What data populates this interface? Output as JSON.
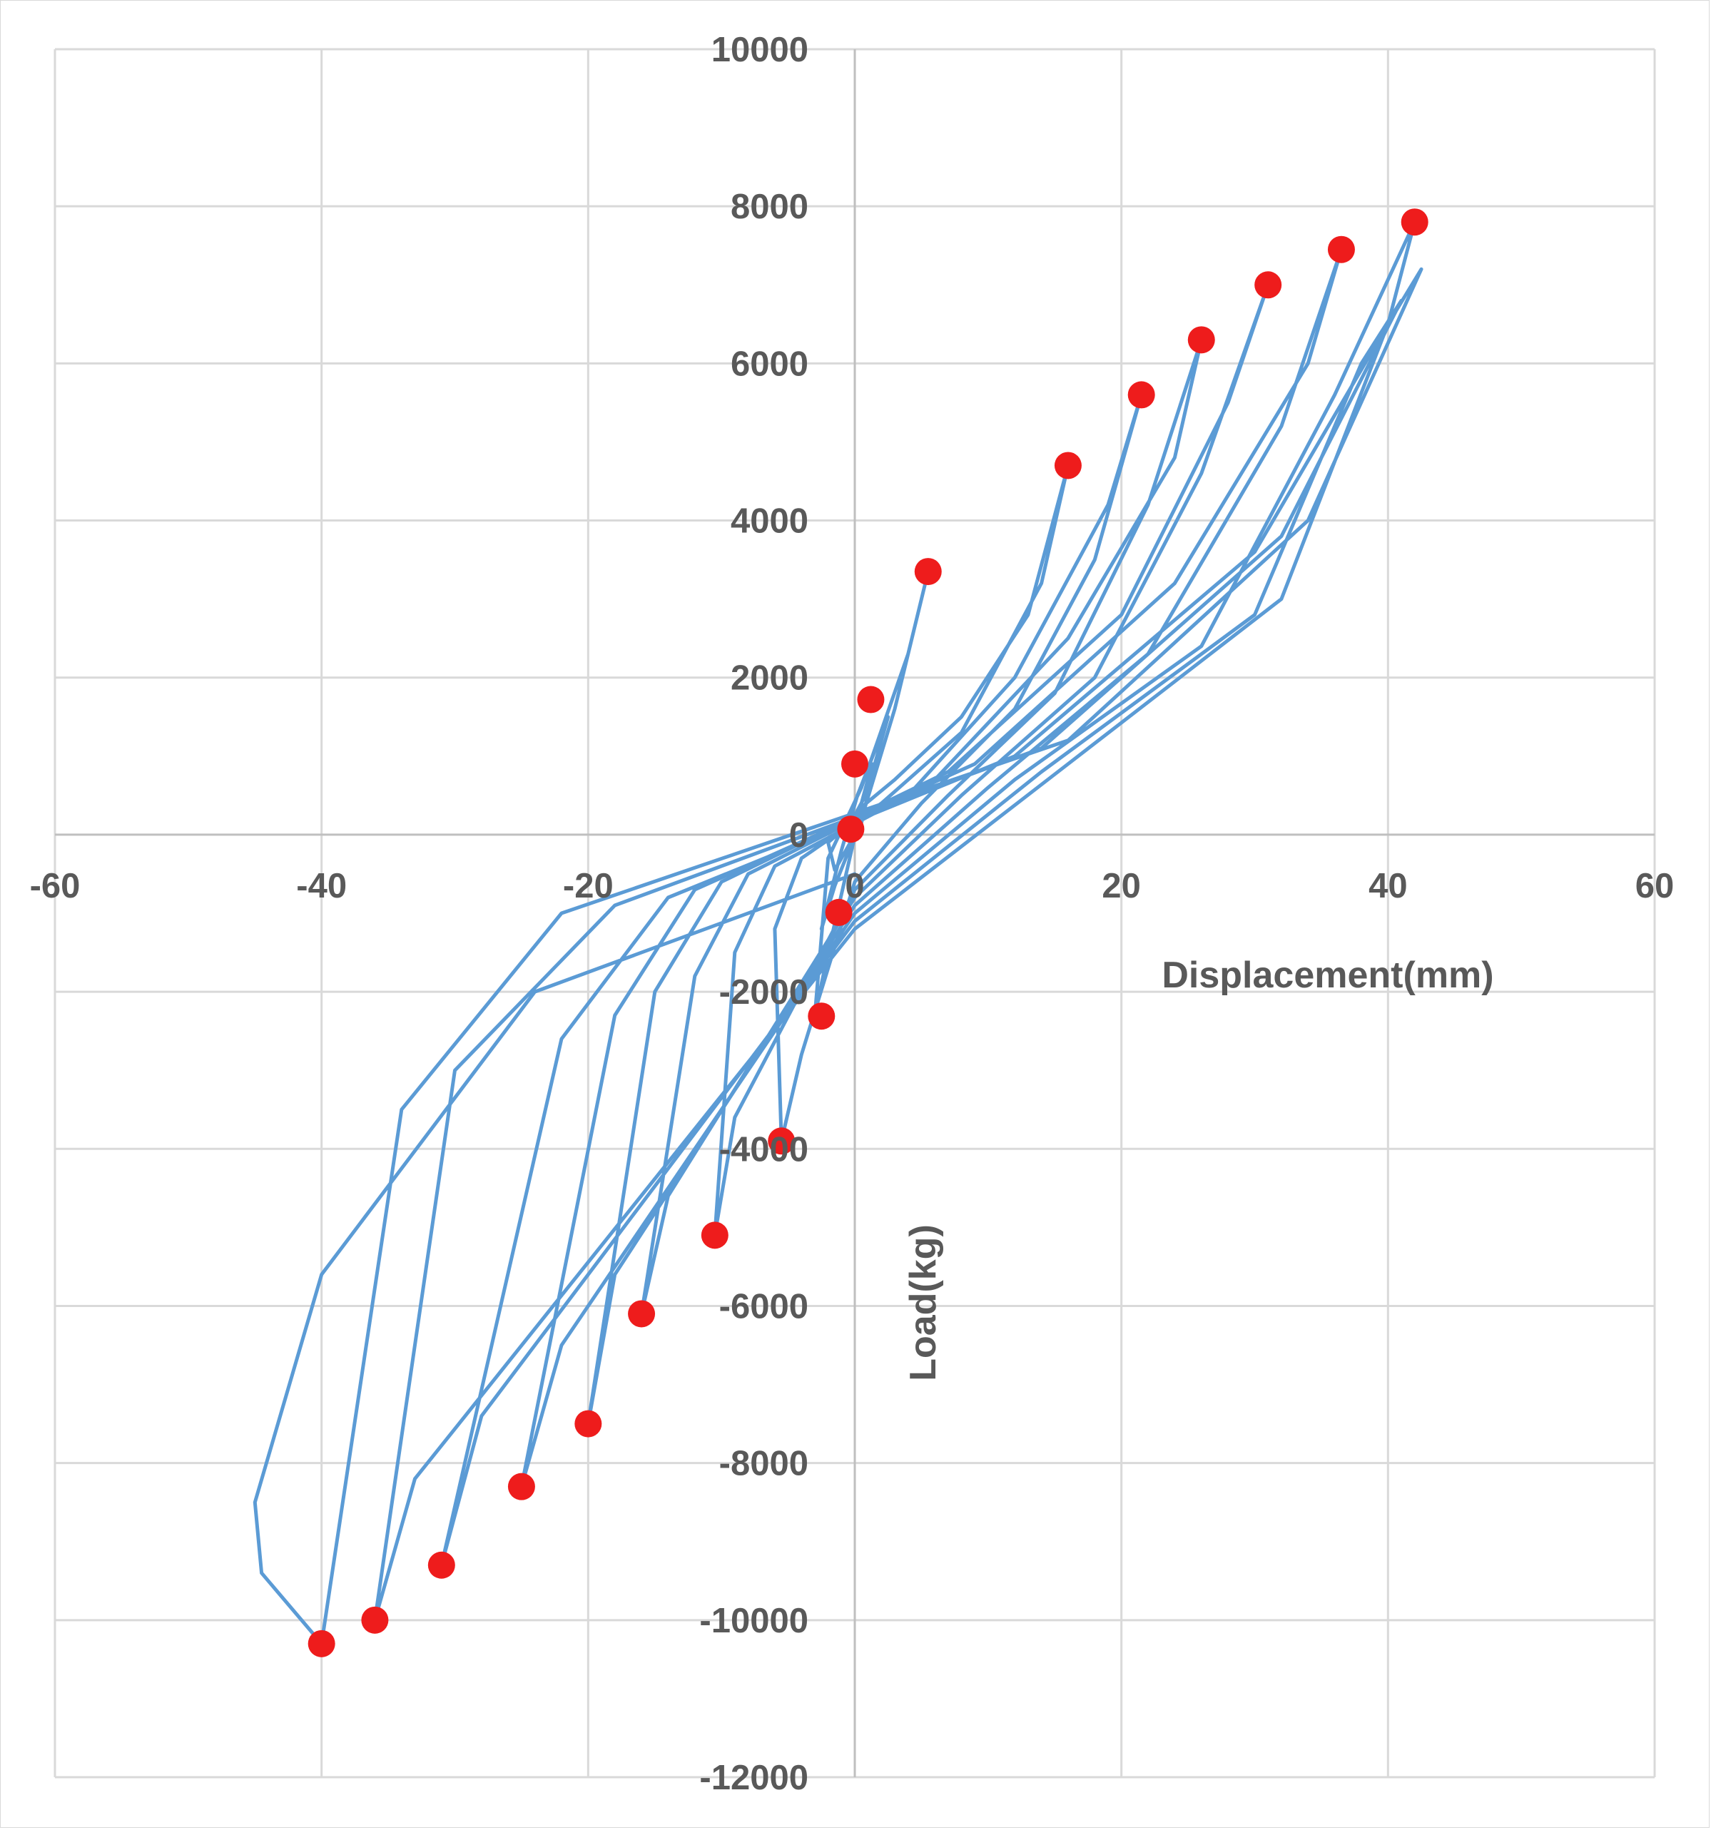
{
  "chart_data": {
    "type": "scatter",
    "xlabel": "Displacement(mm)",
    "ylabel": "Load(kg)",
    "xlim": [
      -60,
      60
    ],
    "ylim": [
      -12000,
      10000
    ],
    "x_ticks": [
      -60,
      -40,
      -20,
      0,
      20,
      40,
      60
    ],
    "y_ticks": [
      10000,
      8000,
      6000,
      4000,
      2000,
      0,
      -2000,
      -4000,
      -6000,
      -8000,
      -10000,
      -12000
    ],
    "grid": true,
    "legend": "none",
    "colors": {
      "hysteresis": "#5b9bd5",
      "peaks": "#ee1c1c",
      "grid": "#d9d9d9",
      "text": "#595959"
    },
    "series": [
      {
        "style": "line",
        "points": [
          [
            0,
            0
          ],
          [
            0.5,
            400
          ],
          [
            1.3,
            900
          ],
          [
            0.8,
            500
          ],
          [
            -0.3,
            150
          ],
          [
            -2,
            -100
          ],
          [
            -1.5,
            -450
          ],
          [
            0.5,
            150
          ],
          [
            1.5,
            900
          ],
          [
            2.5,
            1500
          ],
          [
            0.2,
            500
          ],
          [
            -1,
            -200
          ],
          [
            -2.5,
            -1200
          ],
          [
            -1.5,
            -650
          ],
          [
            0.5,
            200
          ],
          [
            3,
            1600
          ],
          [
            5.5,
            3350
          ],
          [
            4,
            2300
          ],
          [
            0.5,
            600
          ],
          [
            -2,
            -300
          ],
          [
            -3,
            -2300
          ],
          [
            -2,
            -1500
          ],
          [
            0.5,
            350
          ],
          [
            3,
            700
          ],
          [
            8,
            1500
          ],
          [
            13,
            2800
          ],
          [
            16,
            4700
          ],
          [
            14,
            3200
          ],
          [
            8,
            1300
          ],
          [
            2,
            400
          ],
          [
            -4,
            -300
          ],
          [
            -6,
            -1200
          ],
          [
            -5.5,
            -3900
          ],
          [
            -4,
            -2800
          ],
          [
            0,
            -600
          ],
          [
            5,
            400
          ],
          [
            12,
            1600
          ],
          [
            18,
            3500
          ],
          [
            21.5,
            5600
          ],
          [
            19,
            4200
          ],
          [
            12,
            2000
          ],
          [
            4,
            500
          ],
          [
            -6,
            -400
          ],
          [
            -9,
            -1500
          ],
          [
            -10.5,
            -5100
          ],
          [
            -9,
            -3600
          ],
          [
            0,
            -700
          ],
          [
            7,
            500
          ],
          [
            15,
            1800
          ],
          [
            22,
            4200
          ],
          [
            26,
            6300
          ],
          [
            24,
            4800
          ],
          [
            16,
            2500
          ],
          [
            6,
            700
          ],
          [
            -8,
            -500
          ],
          [
            -12,
            -1800
          ],
          [
            -16,
            -6100
          ],
          [
            -14,
            -4600
          ],
          [
            0,
            -800
          ],
          [
            8,
            500
          ],
          [
            18,
            2000
          ],
          [
            26,
            4600
          ],
          [
            31,
            7000
          ],
          [
            28,
            5500
          ],
          [
            20,
            2800
          ],
          [
            7,
            800
          ],
          [
            -10,
            -600
          ],
          [
            -15,
            -2000
          ],
          [
            -20,
            -7500
          ],
          [
            -18,
            -5600
          ],
          [
            0,
            -900
          ],
          [
            10,
            600
          ],
          [
            22,
            2300
          ],
          [
            32,
            5200
          ],
          [
            36.5,
            7450
          ],
          [
            34,
            6000
          ],
          [
            24,
            3200
          ],
          [
            9,
            900
          ],
          [
            -12,
            -700
          ],
          [
            -18,
            -2300
          ],
          [
            -25,
            -8300
          ],
          [
            -22,
            -6500
          ],
          [
            0,
            -1000
          ],
          [
            12,
            700
          ],
          [
            26,
            2400
          ],
          [
            36,
            5600
          ],
          [
            42,
            7800
          ],
          [
            40,
            6500
          ],
          [
            30,
            3600
          ],
          [
            12,
            1000
          ],
          [
            -14,
            -800
          ],
          [
            -22,
            -2600
          ],
          [
            -31,
            -9300
          ],
          [
            -28,
            -7400
          ],
          [
            0,
            -1100
          ],
          [
            14,
            800
          ],
          [
            30,
            2800
          ],
          [
            38,
            6000
          ],
          [
            41,
            6800
          ],
          [
            32,
            3800
          ],
          [
            14,
            1100
          ],
          [
            -18,
            -900
          ],
          [
            -30,
            -3000
          ],
          [
            -36,
            -10000
          ],
          [
            -33,
            -8200
          ],
          [
            0,
            -1200
          ],
          [
            16,
            900
          ],
          [
            32,
            3000
          ],
          [
            40,
            6500
          ],
          [
            42.5,
            7200
          ],
          [
            34,
            4000
          ],
          [
            16,
            1200
          ],
          [
            -22,
            -1000
          ],
          [
            -34,
            -3500
          ],
          [
            -40,
            -10300
          ],
          [
            -44.5,
            -9400
          ],
          [
            -45,
            -8500
          ],
          [
            -40,
            -5600
          ],
          [
            -24,
            -2000
          ],
          [
            0,
            -500
          ]
        ]
      },
      {
        "style": "markers",
        "points": [
          [
            42,
            7800
          ],
          [
            36.5,
            7450
          ],
          [
            31,
            7000
          ],
          [
            26,
            6300
          ],
          [
            21.5,
            5600
          ],
          [
            16,
            4700
          ],
          [
            5.5,
            3350
          ],
          [
            1.2,
            1720
          ],
          [
            0,
            900
          ],
          [
            -0.3,
            70
          ],
          [
            -1.2,
            -990
          ],
          [
            -2.5,
            -2310
          ],
          [
            -5.5,
            -3900
          ],
          [
            -10.5,
            -5100
          ],
          [
            -16,
            -6100
          ],
          [
            -20,
            -7500
          ],
          [
            -25,
            -8300
          ],
          [
            -31,
            -9300
          ],
          [
            -36,
            -10000
          ],
          [
            -40,
            -10300
          ]
        ]
      }
    ]
  }
}
